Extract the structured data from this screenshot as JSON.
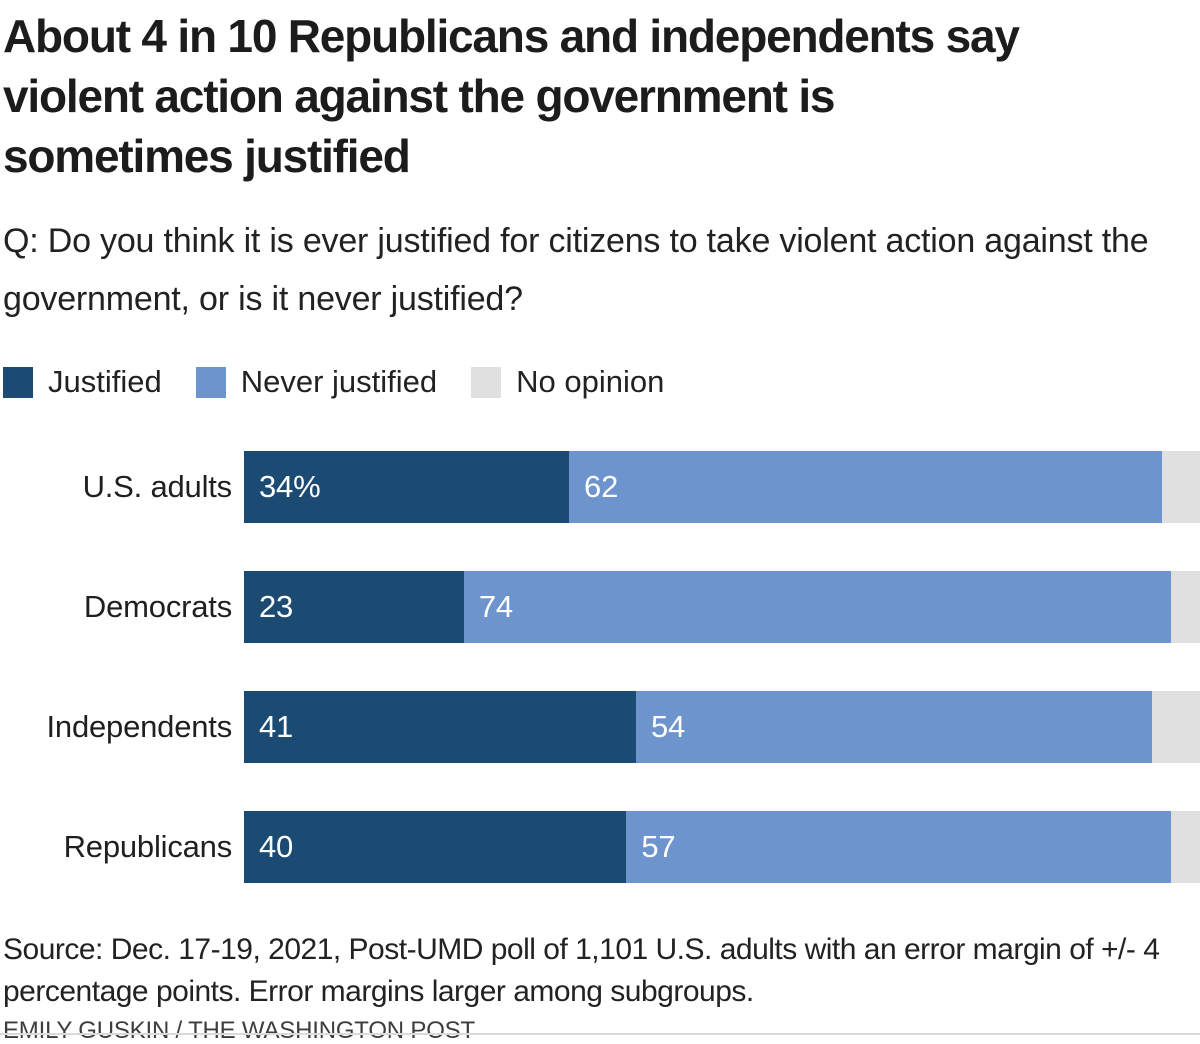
{
  "header": {
    "title_lines": [
      "About 4 in 10 Republicans and independents say",
      "violent action against the government is",
      "sometimes justified"
    ],
    "question": "Q: Do you think it is ever justified for citizens to take violent action against the government, or is it never justified?"
  },
  "chart_data": {
    "type": "bar",
    "orientation": "horizontal",
    "stacked": true,
    "unit": "percent",
    "xlim": [
      0,
      100
    ],
    "grid": false,
    "legend_position": "top",
    "categories": [
      "U.S. adults",
      "Democrats",
      "Independents",
      "Republicans"
    ],
    "series": [
      {
        "name": "Justified",
        "color": "#1b4a73",
        "values": [
          34,
          23,
          41,
          40
        ],
        "value_labels": [
          "34%",
          "23",
          "41",
          "40"
        ],
        "label_color": "#ffffff"
      },
      {
        "name": "Never justified",
        "color": "#6d94cd",
        "values": [
          62,
          74,
          54,
          57
        ],
        "value_labels": [
          "62",
          "74",
          "54",
          "57"
        ],
        "label_color": "#ffffff"
      },
      {
        "name": "No opinion",
        "color": "#e0e0e0",
        "values": [
          4,
          3,
          5,
          3
        ],
        "value_labels": [
          "",
          "",
          "",
          ""
        ]
      }
    ]
  },
  "footer": {
    "source": "Source: Dec. 17-19, 2021, Post-UMD poll of 1,101 U.S. adults with an error margin of +/- 4 percentage points. Error margins larger among subgroups.",
    "byline": "EMILY GUSKIN / THE WASHINGTON POST"
  }
}
